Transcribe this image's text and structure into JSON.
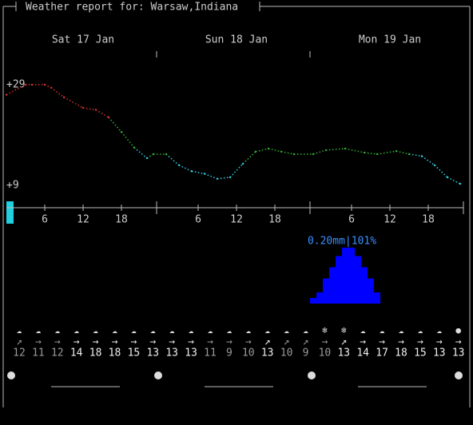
{
  "header": {
    "title": "Weather report for: Warsaw,Indiana"
  },
  "chart_data": [
    {
      "type": "line",
      "days": [
        "Sat 17 Jan",
        "Sun 18 Jan",
        "Mon 19 Jan"
      ],
      "x": [
        0,
        3,
        4,
        6,
        7,
        9,
        12,
        14,
        16,
        18,
        20,
        22,
        23,
        25,
        27,
        29,
        31,
        33,
        35,
        37,
        39,
        41,
        43,
        45,
        48,
        50,
        53,
        56,
        58,
        61,
        63,
        65,
        67,
        69,
        71
      ],
      "values": [
        27,
        29,
        29,
        29,
        28.4,
        26.5,
        24.4,
        24,
        22.5,
        19.6,
        16.5,
        14.4,
        15.2,
        15.2,
        13,
        11.8,
        11.3,
        10.3,
        10.6,
        13.3,
        15.7,
        16.3,
        15.7,
        15.2,
        15.2,
        16,
        16.3,
        15.5,
        15.2,
        15.8,
        15.2,
        14.8,
        13,
        10.6,
        9.3
      ],
      "xlim": [
        0,
        71.5
      ],
      "xticks": [
        6,
        12,
        18,
        {
          "value": 30,
          "label": "6"
        },
        {
          "value": 36,
          "label": "12"
        },
        {
          "value": 42,
          "label": "18"
        },
        {
          "value": 54,
          "label": "6"
        },
        {
          "value": 60,
          "label": "12"
        },
        {
          "value": 66,
          "label": "18"
        }
      ],
      "ylim": [
        9,
        29
      ],
      "yticks": [
        {
          "value": 29,
          "label": "+29"
        },
        {
          "value": 9,
          "label": "+9"
        }
      ],
      "colors": {
        "warm": "#d03030",
        "mild": "#30b030",
        "cold": "#30d0e0"
      }
    },
    {
      "type": "bar",
      "annotation": "0.20mm|101%",
      "x": [
        48,
        49,
        50,
        51,
        52,
        53,
        54,
        55,
        56,
        57,
        58
      ],
      "values": [
        0.02,
        0.04,
        0.09,
        0.13,
        0.17,
        0.2,
        0.2,
        0.17,
        0.13,
        0.09,
        0.04
      ],
      "ylim": [
        0,
        0.2
      ],
      "color": "#0000ff"
    }
  ],
  "forecast": {
    "icons": [
      "☁",
      "☁",
      "☁",
      "☁",
      "☁",
      "☁",
      "☁",
      "☁",
      "☁",
      "☁",
      "☁",
      "☁",
      "☁",
      "☁",
      "☁",
      "☁",
      "❄",
      "❄",
      "☁",
      "☁",
      "☁",
      "☁",
      "☁",
      "●"
    ],
    "winds": [
      "↗",
      "→",
      "→",
      "→",
      "→",
      "→",
      "→",
      "→",
      "→",
      "→",
      "→",
      "→",
      "→",
      "↗",
      "↗",
      "↗",
      "→",
      "↗",
      "→",
      "→",
      "→",
      "→",
      "→",
      "→"
    ],
    "speeds": [
      12,
      11,
      12,
      14,
      18,
      18,
      15,
      13,
      13,
      13,
      11,
      9,
      10,
      13,
      10,
      9,
      10,
      13,
      14,
      17,
      18,
      15,
      13,
      13
    ],
    "speed_colors": [
      "#999",
      "#999",
      "#999",
      "#eee",
      "#eee",
      "#eee",
      "#eee",
      "#eee",
      "#eee",
      "#eee",
      "#999",
      "#999",
      "#999",
      "#eee",
      "#999",
      "#999",
      "#999",
      "#eee",
      "#eee",
      "#eee",
      "#eee",
      "#eee",
      "#eee",
      "#eee"
    ]
  }
}
